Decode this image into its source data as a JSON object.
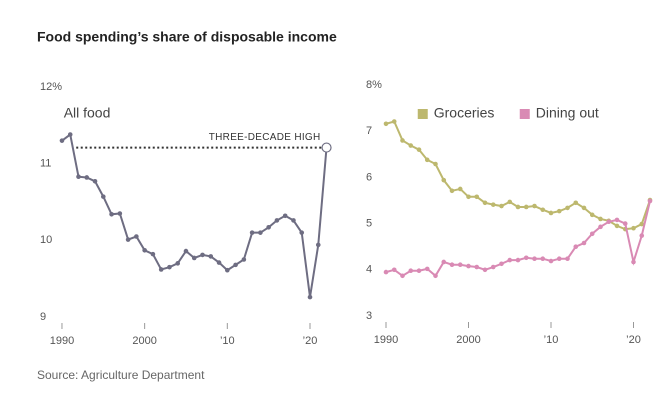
{
  "title": "Food spending’s share of disposable income",
  "source": "Source: Agriculture Department",
  "chart_data": [
    {
      "type": "line",
      "x": [
        1990,
        1991,
        1992,
        1993,
        1994,
        1995,
        1996,
        1997,
        1998,
        1999,
        2000,
        2001,
        2002,
        2003,
        2004,
        2005,
        2006,
        2007,
        2008,
        2009,
        2010,
        2011,
        2012,
        2013,
        2014,
        2015,
        2016,
        2017,
        2018,
        2019,
        2020,
        2021,
        2022
      ],
      "series": [
        {
          "name": "All food",
          "color": "#6e6d82",
          "values": [
            11.3,
            11.38,
            10.83,
            10.82,
            10.77,
            10.57,
            10.34,
            10.35,
            10.01,
            10.05,
            9.87,
            9.82,
            9.62,
            9.65,
            9.7,
            9.86,
            9.77,
            9.81,
            9.79,
            9.71,
            9.61,
            9.68,
            9.75,
            10.1,
            10.1,
            10.17,
            10.26,
            10.32,
            10.26,
            10.1,
            9.26,
            9.94,
            11.21
          ]
        }
      ],
      "annotation": {
        "text": "THREE-DECADE HIGH",
        "value": 11.21
      },
      "xlim": [
        1989,
        2023
      ],
      "xticks": [
        1990,
        2000,
        {
          "value": 2010,
          "label": "’10"
        },
        {
          "value": 2020,
          "label": "’20"
        }
      ],
      "ylim": [
        9,
        12
      ],
      "yticks": [
        9,
        10,
        11,
        {
          "value": 12,
          "label": "12%"
        }
      ]
    },
    {
      "type": "line",
      "x": [
        1990,
        1991,
        1992,
        1993,
        1994,
        1995,
        1996,
        1997,
        1998,
        1999,
        2000,
        2001,
        2002,
        2003,
        2004,
        2005,
        2006,
        2007,
        2008,
        2009,
        2010,
        2011,
        2012,
        2013,
        2014,
        2015,
        2016,
        2017,
        2018,
        2019,
        2020,
        2021,
        2022
      ],
      "series": [
        {
          "name": "Groceries",
          "color": "#bdb86e",
          "values": [
            7.16,
            7.21,
            6.8,
            6.69,
            6.6,
            6.38,
            6.29,
            5.94,
            5.71,
            5.75,
            5.58,
            5.58,
            5.45,
            5.41,
            5.38,
            5.47,
            5.36,
            5.36,
            5.38,
            5.3,
            5.23,
            5.27,
            5.34,
            5.45,
            5.34,
            5.19,
            5.1,
            5.06,
            4.95,
            4.88,
            4.9,
            4.99,
            5.51
          ]
        },
        {
          "name": "Dining out",
          "color": "#d98ab4",
          "values": [
            3.95,
            4.0,
            3.87,
            3.98,
            3.98,
            4.02,
            3.87,
            4.17,
            4.11,
            4.11,
            4.08,
            4.06,
            4.0,
            4.06,
            4.13,
            4.21,
            4.21,
            4.26,
            4.24,
            4.24,
            4.19,
            4.24,
            4.24,
            4.5,
            4.58,
            4.78,
            4.93,
            5.04,
            5.08,
            5.0,
            4.17,
            4.74,
            5.49
          ]
        }
      ],
      "legend": "top",
      "xlim": [
        1989,
        2023
      ],
      "xticks": [
        1990,
        2000,
        {
          "value": 2010,
          "label": "’10"
        },
        {
          "value": 2020,
          "label": "’20"
        }
      ],
      "ylim": [
        3,
        8
      ],
      "yticks": [
        3,
        4,
        5,
        6,
        7,
        {
          "value": 8,
          "label": "8%"
        }
      ]
    }
  ]
}
